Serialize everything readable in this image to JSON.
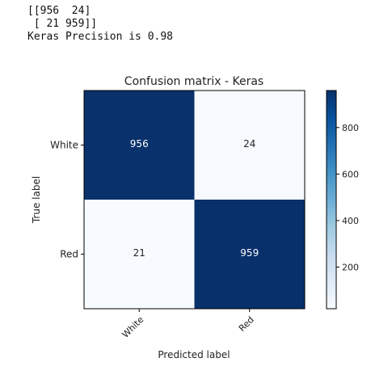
{
  "console": {
    "lines": [
      "[[956  24]",
      " [ 21 959]]",
      "Keras Precision is 0.98"
    ]
  },
  "chart_data": {
    "type": "heatmap",
    "title": "Confusion matrix - Keras",
    "xlabel": "Predicted label",
    "ylabel": "True label",
    "x_categories": [
      "White",
      "Red"
    ],
    "y_categories": [
      "White",
      "Red"
    ],
    "values": [
      [
        956,
        24
      ],
      [
        21,
        959
      ]
    ],
    "colormap": "Blues",
    "colorbar": {
      "range": [
        21,
        959
      ],
      "ticks": [
        200,
        400,
        600,
        800
      ],
      "tick_labels": [
        "200",
        "400",
        "600",
        "800"
      ]
    },
    "colors": {
      "low": "#f7fbff",
      "high": "#08306b"
    }
  }
}
